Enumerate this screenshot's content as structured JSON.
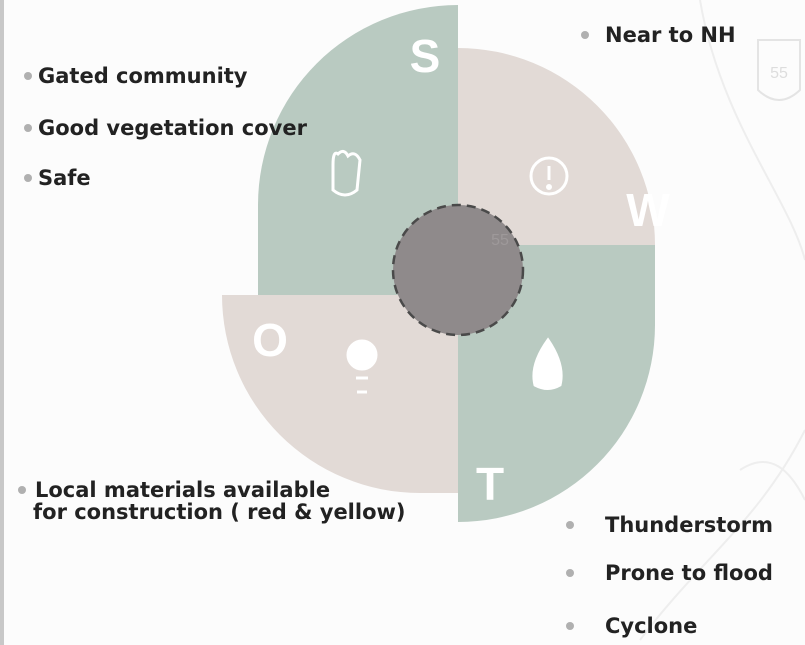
{
  "badges": [
    "55",
    "55"
  ],
  "strengths": {
    "letter": "S",
    "items": [
      "Gated community",
      "Good vegetation cover",
      "Safe"
    ]
  },
  "weaknesses": {
    "letter": "W",
    "items": [
      "Near to NH"
    ]
  },
  "opportunities": {
    "letter": "O",
    "items": [
      [
        "Local materials available",
        "for construction ( red & yellow)"
      ]
    ]
  },
  "threats": {
    "letter": "T",
    "items": [
      "Thunderstorm",
      "Prone to flood",
      "Cyclone"
    ]
  }
}
